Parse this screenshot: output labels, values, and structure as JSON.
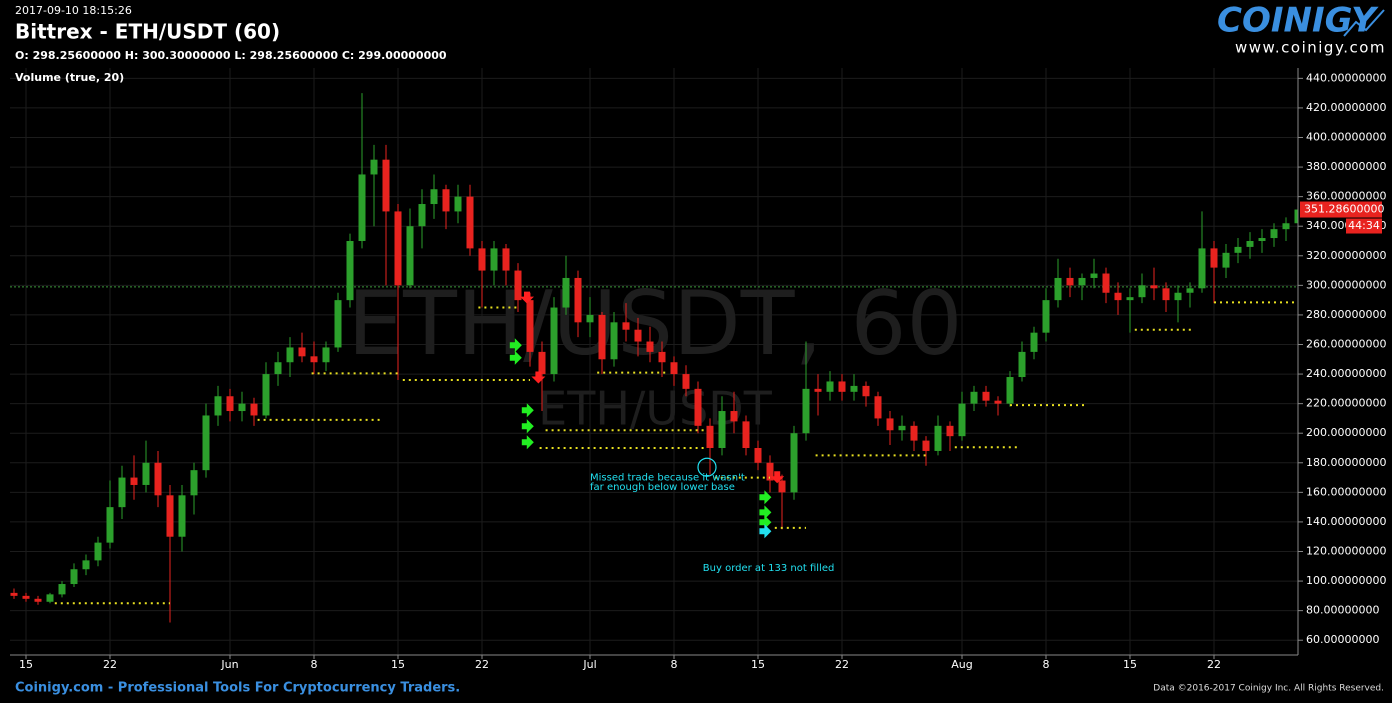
{
  "chart_data": {
    "type": "candlestick",
    "timestamp": "2017-09-10 18:15:26",
    "title": "Bittrex - ETH/USDT (60)",
    "ohlc_text": "O: 298.25600000 H: 300.30000000 L: 298.25600000 C: 299.00000000",
    "indicator": "Volume (true, 20)",
    "watermark": "ETH/USDT, 60",
    "watermark_sub": "ETH/USDT",
    "logo": "COINIGY",
    "logo_url": "www.coinigy.com",
    "footer_left": "Coinigy.com - Professional Tools For Cryptocurrency Traders.",
    "footer_right": "Data ©2016-2017 Coinigy Inc. All Rights Reserved.",
    "up_color": "#2ca02c",
    "down_color": "#e8231f",
    "grid": true,
    "categories": [
      null,
      "15",
      null,
      null,
      null,
      null,
      null,
      null,
      "22",
      null,
      null,
      null,
      null,
      null,
      null,
      null,
      null,
      null,
      "Jun",
      null,
      null,
      null,
      null,
      null,
      null,
      "8",
      null,
      null,
      null,
      null,
      null,
      null,
      "15",
      null,
      null,
      null,
      null,
      null,
      null,
      "22",
      null,
      null,
      null,
      null,
      null,
      null,
      null,
      null,
      "Jul",
      null,
      null,
      null,
      null,
      null,
      null,
      "8",
      null,
      null,
      null,
      null,
      null,
      null,
      "15",
      null,
      null,
      null,
      null,
      null,
      null,
      "22",
      null,
      null,
      null,
      null,
      null,
      null,
      null,
      null,
      null,
      "Aug",
      null,
      null,
      null,
      null,
      null,
      null,
      "8",
      null,
      null,
      null,
      null,
      null,
      null,
      "15",
      null,
      null,
      null,
      null,
      null,
      null,
      "22",
      null,
      null,
      null,
      null,
      null,
      null,
      null
    ],
    "ohlc": [
      [
        92,
        95,
        88,
        90
      ],
      [
        90,
        92,
        86,
        88
      ],
      [
        88,
        90,
        84,
        86
      ],
      [
        86,
        92,
        85,
        91
      ],
      [
        91,
        100,
        89,
        98
      ],
      [
        98,
        112,
        96,
        108
      ],
      [
        108,
        118,
        104,
        114
      ],
      [
        114,
        130,
        110,
        126
      ],
      [
        126,
        168,
        122,
        150
      ],
      [
        150,
        178,
        142,
        170
      ],
      [
        170,
        185,
        155,
        165
      ],
      [
        165,
        195,
        160,
        180
      ],
      [
        180,
        188,
        150,
        158
      ],
      [
        158,
        165,
        72,
        130
      ],
      [
        130,
        165,
        120,
        158
      ],
      [
        158,
        180,
        145,
        175
      ],
      [
        175,
        220,
        170,
        212
      ],
      [
        212,
        232,
        205,
        225
      ],
      [
        225,
        230,
        208,
        215
      ],
      [
        215,
        228,
        208,
        220
      ],
      [
        220,
        224,
        205,
        212
      ],
      [
        212,
        248,
        210,
        240
      ],
      [
        240,
        255,
        232,
        248
      ],
      [
        248,
        265,
        238,
        258
      ],
      [
        258,
        268,
        248,
        252
      ],
      [
        252,
        262,
        240,
        248
      ],
      [
        248,
        262,
        242,
        258
      ],
      [
        258,
        295,
        255,
        290
      ],
      [
        290,
        335,
        285,
        330
      ],
      [
        330,
        430,
        325,
        375
      ],
      [
        375,
        395,
        340,
        385
      ],
      [
        385,
        395,
        300,
        350
      ],
      [
        350,
        355,
        236,
        300
      ],
      [
        300,
        352,
        298,
        340
      ],
      [
        340,
        365,
        325,
        355
      ],
      [
        355,
        375,
        345,
        365
      ],
      [
        365,
        368,
        338,
        350
      ],
      [
        350,
        368,
        342,
        360
      ],
      [
        360,
        368,
        320,
        325
      ],
      [
        325,
        330,
        285,
        310
      ],
      [
        310,
        330,
        300,
        325
      ],
      [
        325,
        328,
        300,
        310
      ],
      [
        310,
        315,
        282,
        290
      ],
      [
        290,
        295,
        245,
        255
      ],
      [
        255,
        262,
        215,
        240
      ],
      [
        240,
        292,
        235,
        285
      ],
      [
        285,
        320,
        280,
        305
      ],
      [
        305,
        310,
        265,
        275
      ],
      [
        275,
        292,
        265,
        280
      ],
      [
        280,
        282,
        240,
        250
      ],
      [
        250,
        282,
        245,
        275
      ],
      [
        275,
        288,
        262,
        270
      ],
      [
        270,
        278,
        252,
        262
      ],
      [
        262,
        272,
        248,
        255
      ],
      [
        255,
        262,
        238,
        248
      ],
      [
        248,
        252,
        232,
        240
      ],
      [
        240,
        246,
        225,
        230
      ],
      [
        230,
        235,
        200,
        205
      ],
      [
        205,
        210,
        172,
        190
      ],
      [
        190,
        225,
        185,
        215
      ],
      [
        215,
        228,
        200,
        208
      ],
      [
        208,
        212,
        185,
        190
      ],
      [
        190,
        195,
        175,
        180
      ],
      [
        180,
        185,
        160,
        168
      ],
      [
        168,
        172,
        135,
        160
      ],
      [
        160,
        205,
        155,
        200
      ],
      [
        200,
        262,
        195,
        230
      ],
      [
        230,
        240,
        212,
        228
      ],
      [
        228,
        242,
        222,
        235
      ],
      [
        235,
        240,
        222,
        228
      ],
      [
        228,
        240,
        222,
        232
      ],
      [
        232,
        235,
        218,
        225
      ],
      [
        225,
        228,
        205,
        210
      ],
      [
        210,
        215,
        192,
        202
      ],
      [
        202,
        212,
        195,
        205
      ],
      [
        205,
        208,
        188,
        195
      ],
      [
        195,
        198,
        178,
        188
      ],
      [
        188,
        212,
        185,
        205
      ],
      [
        205,
        208,
        188,
        198
      ],
      [
        198,
        228,
        195,
        220
      ],
      [
        220,
        232,
        215,
        228
      ],
      [
        228,
        232,
        218,
        222
      ],
      [
        222,
        225,
        212,
        220
      ],
      [
        220,
        242,
        218,
        238
      ],
      [
        238,
        262,
        235,
        255
      ],
      [
        255,
        272,
        250,
        268
      ],
      [
        268,
        298,
        262,
        290
      ],
      [
        290,
        318,
        285,
        305
      ],
      [
        305,
        312,
        292,
        300
      ],
      [
        300,
        308,
        290,
        305
      ],
      [
        305,
        318,
        298,
        308
      ],
      [
        308,
        312,
        288,
        295
      ],
      [
        295,
        302,
        280,
        290
      ],
      [
        290,
        298,
        268,
        292
      ],
      [
        292,
        308,
        288,
        300
      ],
      [
        300,
        312,
        290,
        298
      ],
      [
        298,
        302,
        282,
        290
      ],
      [
        290,
        300,
        275,
        295
      ],
      [
        295,
        302,
        285,
        298
      ],
      [
        298,
        350,
        295,
        325
      ],
      [
        325,
        330,
        288,
        312
      ],
      [
        312,
        328,
        305,
        322
      ],
      [
        322,
        332,
        315,
        326
      ],
      [
        326,
        336,
        318,
        330
      ],
      [
        330,
        338,
        322,
        332
      ],
      [
        332,
        342,
        326,
        338
      ],
      [
        338,
        346,
        330,
        342
      ],
      [
        342,
        352,
        338,
        351.286
      ]
    ],
    "ylim": [
      50,
      447
    ],
    "yticks": [
      {
        "value": 60,
        "label": "60.00000000"
      },
      {
        "value": 80,
        "label": "80.00000000"
      },
      {
        "value": 100,
        "label": "100.00000000"
      },
      {
        "value": 120,
        "label": "120.00000000"
      },
      {
        "value": 140,
        "label": "140.00000000"
      },
      {
        "value": 160,
        "label": "160.00000000"
      },
      {
        "value": 180,
        "label": "180.00000000"
      },
      {
        "value": 200,
        "label": "200.00000000"
      },
      {
        "value": 220,
        "label": "220.00000000"
      },
      {
        "value": 240,
        "label": "240.00000000"
      },
      {
        "value": 260,
        "label": "260.00000000"
      },
      {
        "value": 280,
        "label": "280.00000000"
      },
      {
        "value": 300,
        "label": "300.00000000"
      },
      {
        "value": 320,
        "label": "320.00000000"
      },
      {
        "value": 340,
        "label": "340.00000000"
      },
      {
        "value": 360,
        "label": "360.00000000"
      },
      {
        "value": 380,
        "label": "380.00000000"
      },
      {
        "value": 400,
        "label": "400.00000000"
      },
      {
        "value": 420,
        "label": "420.00000000"
      },
      {
        "value": 440,
        "label": "440.00000000"
      }
    ],
    "last_price": {
      "value": 351.286,
      "label": "351.28600000"
    },
    "countdown": "44:34",
    "current_line": 299,
    "current_line_color": "#3c9a3c",
    "level_color": "#e8e020",
    "levels": [
      {
        "value": 85,
        "from": 3.4,
        "to": 13
      },
      {
        "value": 209,
        "from": 20.3,
        "to": 30.5
      },
      {
        "value": 240.5,
        "from": 24.8,
        "to": 32.2
      },
      {
        "value": 236,
        "from": 32.4,
        "to": 43
      },
      {
        "value": 285,
        "from": 38.7,
        "to": 42.2
      },
      {
        "value": 202,
        "from": 44.3,
        "to": 57.6
      },
      {
        "value": 190,
        "from": 43.8,
        "to": 57.6
      },
      {
        "value": 241,
        "from": 48.6,
        "to": 54.3
      },
      {
        "value": 170,
        "from": 58.4,
        "to": 63
      },
      {
        "value": 136,
        "from": 63.4,
        "to": 66
      },
      {
        "value": 185,
        "from": 66.8,
        "to": 76
      },
      {
        "value": 190.5,
        "from": 78.4,
        "to": 83.8
      },
      {
        "value": 219,
        "from": 83,
        "to": 89.3
      },
      {
        "value": 270,
        "from": 93.4,
        "to": 98.4
      },
      {
        "value": 288.5,
        "from": 100,
        "to": 106.8
      }
    ],
    "sell_color": "#ff2020",
    "buy_color": "#22ee22",
    "unfilled_color": "#22e0f0",
    "sells": [
      {
        "x": 42.75,
        "value": 291
      },
      {
        "x": 43.7,
        "value": 237
      },
      {
        "x": 63.6,
        "value": 169.5
      }
    ],
    "buys": [
      {
        "x": 41.9,
        "value": 259.5
      },
      {
        "x": 41.9,
        "value": 251
      },
      {
        "x": 42.9,
        "value": 215.5
      },
      {
        "x": 42.9,
        "value": 204.7
      },
      {
        "x": 42.9,
        "value": 193.9
      },
      {
        "x": 62.7,
        "value": 156.7
      },
      {
        "x": 62.7,
        "value": 146.5
      },
      {
        "x": 62.7,
        "value": 139.8
      }
    ],
    "unfilled": [
      {
        "x": 62.7,
        "value": 133.7
      }
    ],
    "missed": {
      "x": 57.75,
      "value": 177
    },
    "annotations": [
      {
        "text": "Missed trade because it wasn't",
        "x": 48.0,
        "value": 170
      },
      {
        "text": "far enough below lower base",
        "x": 48.0,
        "value": 163.5
      },
      {
        "text": "Buy order at 133 not filled",
        "x": 57.4,
        "value": 109
      }
    ]
  }
}
